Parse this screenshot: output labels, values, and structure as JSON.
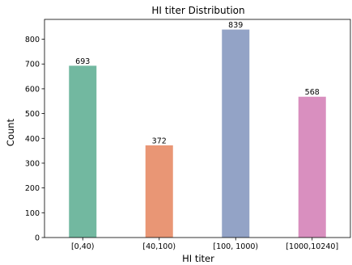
{
  "chart_data": {
    "type": "bar",
    "title": "HI titer Distribution",
    "xlabel": "HI titer",
    "ylabel": "Count",
    "categories": [
      "[0,40)",
      "[40,100)",
      "[100, 1000)",
      "[1000,10240]"
    ],
    "values": [
      693,
      372,
      839,
      568
    ],
    "data_labels": [
      "693",
      "372",
      "839",
      "568"
    ],
    "colors": [
      "#72b8a0",
      "#e99675",
      "#93a3c6",
      "#d98fbf"
    ],
    "ylim": [
      0,
      880
    ],
    "yticks": [
      0,
      100,
      200,
      300,
      400,
      500,
      600,
      700,
      800
    ],
    "ytick_labels": [
      "0",
      "100",
      "200",
      "300",
      "400",
      "500",
      "600",
      "700",
      "800"
    ],
    "grid": false,
    "legend": "none"
  }
}
